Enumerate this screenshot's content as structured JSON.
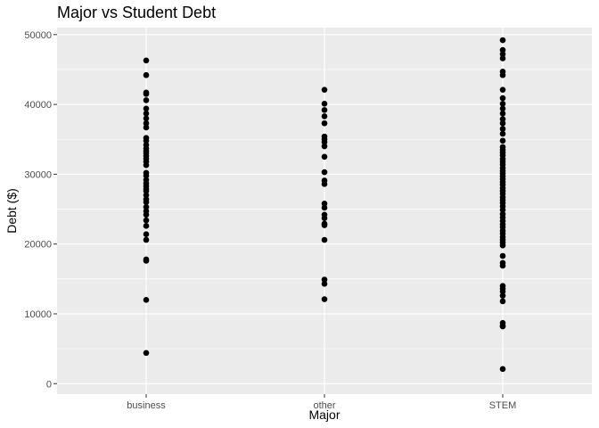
{
  "chart_data": {
    "type": "scatter",
    "title": "Major vs Student Debt",
    "xlabel": "Major",
    "ylabel": "Debt ($)",
    "categories": [
      "business",
      "other",
      "STEM"
    ],
    "ylim": [
      -1500,
      51000
    ],
    "yticks": [
      0,
      10000,
      20000,
      30000,
      40000,
      50000
    ],
    "ytick_labels": [
      "0",
      "10000",
      "20000",
      "30000",
      "40000",
      "50000"
    ],
    "grid": true,
    "point_color": "#000000",
    "panel_color": "#ebebeb",
    "grid_color": "#ffffff",
    "series": [
      {
        "category": "business",
        "values": [
          46300,
          44200,
          41700,
          41500,
          40600,
          39400,
          38700,
          38000,
          37300,
          36700,
          35200,
          34800,
          34200,
          33700,
          33300,
          33000,
          32600,
          32200,
          31800,
          31300,
          30200,
          29800,
          29200,
          28700,
          28300,
          27900,
          27600,
          27000,
          26400,
          26000,
          25300,
          24700,
          24200,
          23400,
          22600,
          21400,
          20600,
          17800,
          17600,
          12000,
          4400
        ]
      },
      {
        "category": "other",
        "values": [
          42100,
          40100,
          39200,
          38300,
          37300,
          35400,
          35000,
          34600,
          34000,
          32500,
          30300,
          29100,
          28600,
          25800,
          25200,
          24200,
          23700,
          22900,
          22700,
          20600,
          14900,
          14300,
          12100
        ]
      },
      {
        "category": "STEM",
        "values": [
          49200,
          47800,
          47200,
          46600,
          44700,
          44200,
          42100,
          40900,
          40100,
          39400,
          38700,
          37900,
          37300,
          36500,
          35800,
          34800,
          33900,
          33500,
          33100,
          32700,
          32200,
          31800,
          31400,
          30900,
          30500,
          30100,
          29700,
          29300,
          28900,
          28500,
          28000,
          27600,
          27200,
          26700,
          26300,
          25900,
          25400,
          24900,
          24300,
          23800,
          23300,
          22800,
          22400,
          21900,
          21500,
          21000,
          20600,
          20200,
          19800,
          18300,
          17300,
          16900,
          14000,
          13600,
          13200,
          12600,
          11800,
          8700,
          8300,
          8200,
          2100
        ]
      }
    ]
  }
}
